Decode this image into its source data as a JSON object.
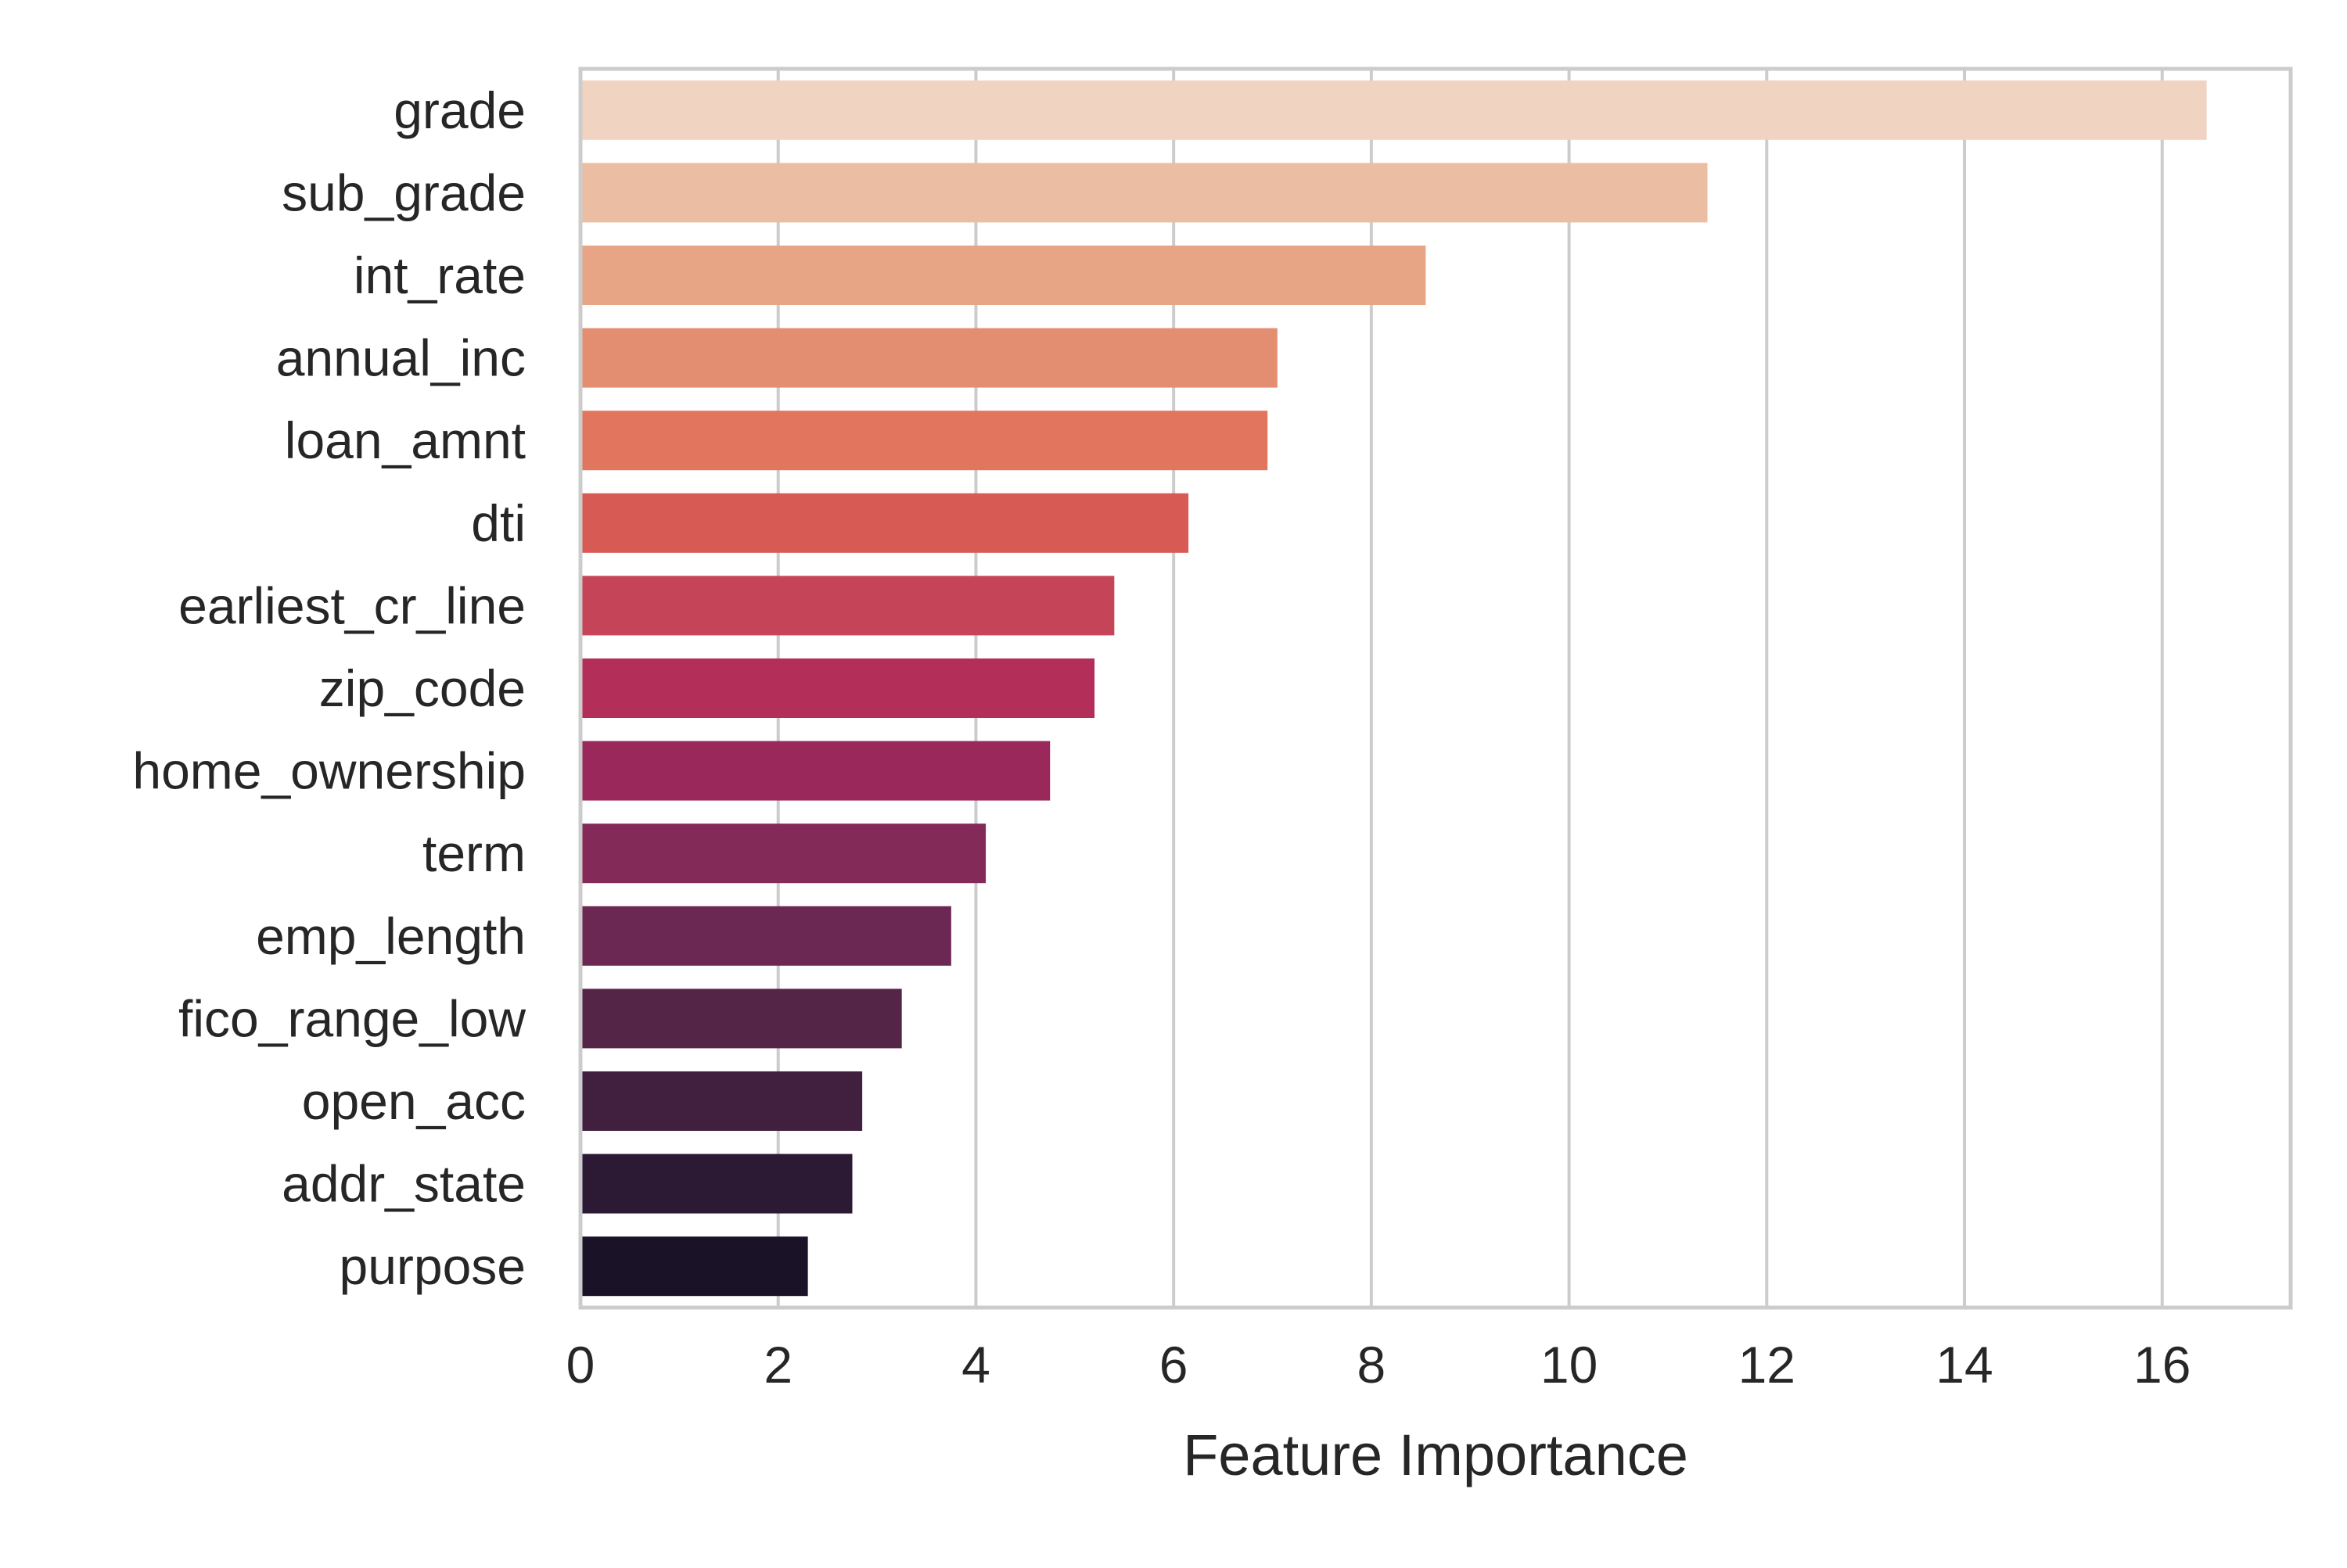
{
  "chart_data": {
    "type": "bar",
    "orientation": "horizontal",
    "title": "",
    "xlabel": "Feature Importance",
    "ylabel": "",
    "xlim": [
      0,
      17.3
    ],
    "xticks": [
      0,
      2,
      4,
      6,
      8,
      10,
      12,
      14,
      16
    ],
    "grid": "vertical",
    "categories": [
      "grade",
      "sub_grade",
      "int_rate",
      "annual_inc",
      "loan_amnt",
      "dti",
      "earliest_cr_line",
      "zip_code",
      "home_ownership",
      "term",
      "emp_length",
      "fico_range_low",
      "open_acc",
      "addr_state",
      "purpose"
    ],
    "values": [
      16.45,
      11.4,
      8.55,
      7.05,
      6.95,
      6.15,
      5.4,
      5.2,
      4.75,
      4.1,
      3.75,
      3.25,
      2.85,
      2.75,
      2.3
    ],
    "colors": [
      "#f1d3c2",
      "#ebbea4",
      "#e7a586",
      "#e38e71",
      "#e1755e",
      "#d75b54",
      "#c54457",
      "#b32e59",
      "#9b285b",
      "#842a59",
      "#6b2852",
      "#552548",
      "#41203f",
      "#2c1a34",
      "#1a1327"
    ]
  }
}
